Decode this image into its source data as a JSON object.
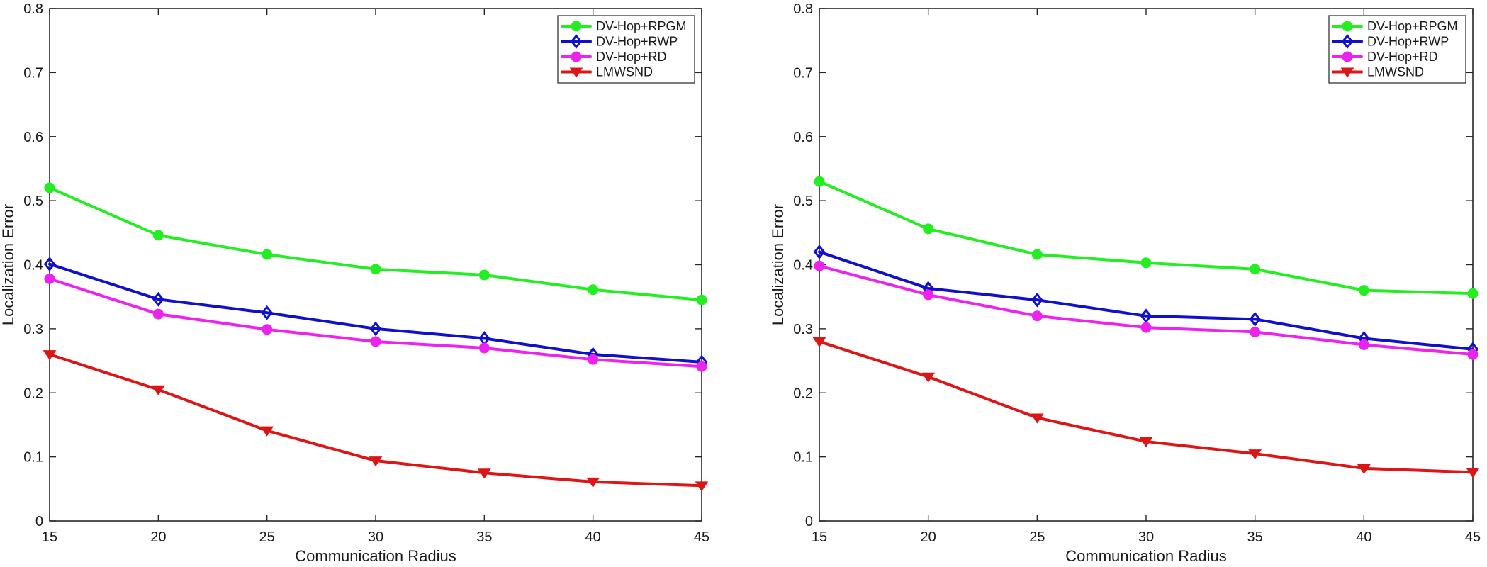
{
  "chart_data": [
    {
      "type": "line",
      "title": "",
      "xlabel": "Communication Radius",
      "ylabel": "Localization Error",
      "x": [
        15,
        20,
        25,
        30,
        35,
        40,
        45
      ],
      "xlim": [
        15,
        45
      ],
      "ylim": [
        0,
        0.8
      ],
      "xticks": [
        15,
        20,
        25,
        30,
        35,
        40,
        45
      ],
      "yticks": [
        0,
        0.1,
        0.2,
        0.3,
        0.4,
        0.5,
        0.6,
        0.7,
        0.8
      ],
      "ytick_labels": [
        "0",
        "0.1",
        "0.2",
        "0.3",
        "0.4",
        "0.5",
        "0.6",
        "0.7",
        "0.8"
      ],
      "legend_position": "top-right",
      "series": [
        {
          "name": "DV-Hop+RPGM",
          "color": "#22ee22",
          "marker": "circle",
          "values": [
            0.52,
            0.446,
            0.416,
            0.393,
            0.384,
            0.361,
            0.345
          ]
        },
        {
          "name": "DV-Hop+RWP",
          "color": "#1010cc",
          "marker": "diamond",
          "values": [
            0.401,
            0.346,
            0.325,
            0.3,
            0.285,
            0.26,
            0.248
          ]
        },
        {
          "name": "DV-Hop+RD",
          "color": "#ee22ee",
          "marker": "circle",
          "values": [
            0.378,
            0.323,
            0.299,
            0.28,
            0.27,
            0.252,
            0.241
          ]
        },
        {
          "name": "LMWSND",
          "color": "#dd1515",
          "marker": "triangle-down",
          "values": [
            0.26,
            0.205,
            0.141,
            0.094,
            0.075,
            0.061,
            0.055
          ]
        }
      ]
    },
    {
      "type": "line",
      "title": "",
      "xlabel": "Communication Radius",
      "ylabel": "Localization Error",
      "x": [
        15,
        20,
        25,
        30,
        35,
        40,
        45
      ],
      "xlim": [
        15,
        45
      ],
      "ylim": [
        0,
        0.8
      ],
      "xticks": [
        15,
        20,
        25,
        30,
        35,
        40,
        45
      ],
      "yticks": [
        0,
        0.1,
        0.2,
        0.3,
        0.4,
        0.5,
        0.6,
        0.7,
        0.8
      ],
      "ytick_labels": [
        "0",
        "0.1",
        "0.2",
        "0.3",
        "0.4",
        "0.5",
        "0.6",
        "0.7",
        "0.8"
      ],
      "legend_position": "top-right",
      "series": [
        {
          "name": "DV-Hop+RPGM",
          "color": "#22ee22",
          "marker": "circle",
          "values": [
            0.53,
            0.456,
            0.416,
            0.403,
            0.393,
            0.36,
            0.355
          ]
        },
        {
          "name": "DV-Hop+RWP",
          "color": "#1010cc",
          "marker": "diamond",
          "values": [
            0.42,
            0.363,
            0.345,
            0.32,
            0.315,
            0.285,
            0.268
          ]
        },
        {
          "name": "DV-Hop+RD",
          "color": "#ee22ee",
          "marker": "circle",
          "values": [
            0.398,
            0.353,
            0.32,
            0.302,
            0.295,
            0.275,
            0.26
          ]
        },
        {
          "name": "LMWSND",
          "color": "#dd1515",
          "marker": "triangle-down",
          "values": [
            0.28,
            0.225,
            0.161,
            0.124,
            0.105,
            0.082,
            0.076
          ]
        }
      ]
    }
  ]
}
